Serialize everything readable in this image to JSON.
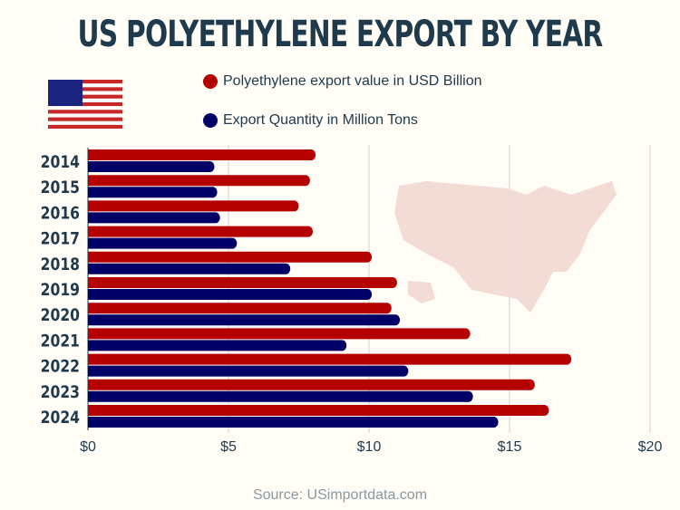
{
  "chart_data": {
    "type": "bar",
    "orientation": "horizontal",
    "title": "US POLYETHYLENE EXPORT BY YEAR",
    "categories": [
      "2014",
      "2015",
      "2016",
      "2017",
      "2018",
      "2019",
      "2020",
      "2021",
      "2022",
      "2023",
      "2024"
    ],
    "series": [
      {
        "name": "Polyethylene export value in USD Billion",
        "color": "#b50000",
        "values": [
          8.1,
          7.9,
          7.5,
          8.0,
          10.1,
          11.0,
          10.8,
          13.6,
          17.2,
          15.9,
          16.4
        ]
      },
      {
        "name": "Export Quantity in Million Tons",
        "color": "#000066",
        "values": [
          4.5,
          4.6,
          4.7,
          5.3,
          7.2,
          10.1,
          11.1,
          9.2,
          11.4,
          13.7,
          14.6
        ]
      }
    ],
    "xlim": [
      0,
      20
    ],
    "xticks": [
      0,
      5,
      10,
      15,
      20
    ],
    "xtick_labels": [
      "$0",
      "$5",
      "$10",
      "$15",
      "$20"
    ],
    "grid": true,
    "legend": "top"
  },
  "source": "Source: USimportdata.com"
}
